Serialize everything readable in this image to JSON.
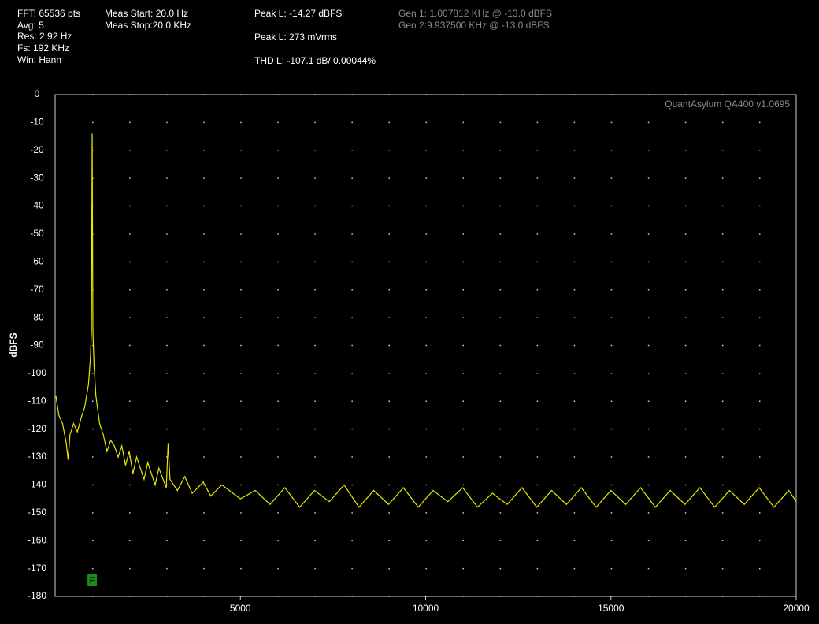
{
  "chart_data": {
    "type": "line",
    "info": [
      {
        "text": "FFT: 65536 pts",
        "color": "#ffffff"
      },
      {
        "text": "Avg: 5",
        "color": "#ffffff"
      },
      {
        "text": "Res: 2.92 Hz",
        "color": "#ffffff"
      },
      {
        "text": "Fs: 192 KHz",
        "color": "#ffffff"
      },
      {
        "text": "Win: Hann",
        "color": "#ffffff"
      },
      {
        "text": "Meas Start: 20.0 Hz",
        "color": "#ffffff"
      },
      {
        "text": "Meas Stop:20.0 KHz",
        "color": "#ffffff"
      },
      {
        "text": "Peak L: -14.27 dBFS",
        "color": "#ffffff"
      },
      {
        "text": "Peak L: 273 mVrms",
        "color": "#ffffff"
      },
      {
        "text": "THD L: -107.1 dB/ 0.00044%",
        "color": "#ffffff"
      },
      {
        "text": "Gen 1: 1.007812 KHz @ -13.0  dBFS",
        "color": "#8a8a8a"
      },
      {
        "text": "Gen 2:9.937500 KHz @ -13.0  dBFS",
        "color": "#8a8a8a"
      }
    ],
    "watermark": "QuantAsylum QA400 v1.0695",
    "ylabel": "dBFS",
    "marker": {
      "label": "F",
      "x": 1000
    },
    "xlim": [
      0,
      20000
    ],
    "xticks": [
      5000,
      10000,
      15000,
      20000
    ],
    "ylim": [
      -180,
      0
    ],
    "yticks": [
      0,
      -10,
      -20,
      -30,
      -40,
      -50,
      -60,
      -70,
      -80,
      -90,
      -100,
      -110,
      -120,
      -130,
      -140,
      -150,
      -160,
      -170,
      -180
    ],
    "grid": true,
    "color": "#e8e800",
    "x": [
      20,
      100,
      200,
      300,
      350,
      400,
      500,
      600,
      700,
      800,
      900,
      950,
      980,
      1000,
      1020,
      1050,
      1100,
      1200,
      1300,
      1400,
      1500,
      1600,
      1700,
      1800,
      1900,
      2000,
      2100,
      2200,
      2400,
      2500,
      2700,
      2800,
      3000,
      3050,
      3100,
      3300,
      3500,
      3700,
      4000,
      4200,
      4500,
      5000,
      5400,
      5800,
      6200,
      6600,
      7000,
      7400,
      7800,
      8200,
      8600,
      9000,
      9400,
      9800,
      10200,
      10600,
      11000,
      11400,
      11800,
      12200,
      12600,
      13000,
      13400,
      13800,
      14200,
      14600,
      15000,
      15400,
      15800,
      16200,
      16600,
      17000,
      17400,
      17800,
      18200,
      18600,
      19000,
      19400,
      19800,
      20000
    ],
    "values": [
      -108,
      -115,
      -118,
      -125,
      -131,
      -122,
      -118,
      -121,
      -116,
      -112,
      -104,
      -95,
      -85,
      -14,
      -85,
      -97,
      -108,
      -118,
      -122,
      -128,
      -124,
      -126,
      -130,
      -126,
      -133,
      -128,
      -136,
      -130,
      -138,
      -132,
      -140,
      -134,
      -141,
      -125,
      -138,
      -142,
      -137,
      -143,
      -139,
      -144,
      -140,
      -145,
      -142,
      -147,
      -141,
      -148,
      -142,
      -146,
      -140,
      -148,
      -142,
      -147,
      -141,
      -148,
      -142,
      -146,
      -141,
      -148,
      -143,
      -147,
      -141,
      -148,
      -142,
      -147,
      -141,
      -148,
      -142,
      -147,
      -141,
      -148,
      -142,
      -147,
      -141,
      -148,
      -142,
      -147,
      -141,
      -148,
      -142,
      -146
    ]
  }
}
